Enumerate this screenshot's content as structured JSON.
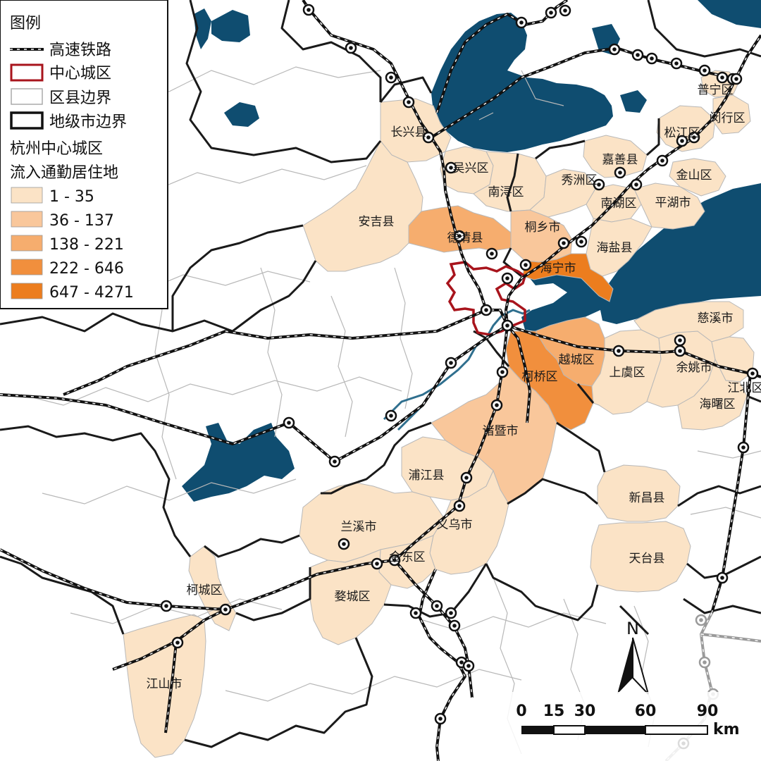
{
  "legend": {
    "title": "图例",
    "items": [
      {
        "key": "rail",
        "label": "高速铁路"
      },
      {
        "key": "center",
        "label": "中心城区"
      },
      {
        "key": "county",
        "label": "区县边界"
      },
      {
        "key": "city",
        "label": "地级市边界"
      }
    ],
    "choropleth_title_line1": "杭州中心城区",
    "choropleth_title_line2": "流入通勤居住地",
    "classes": [
      {
        "label": "1 - 35",
        "color": "#fbe3c6"
      },
      {
        "label": "36 - 137",
        "color": "#f9c79b"
      },
      {
        "label": "138 - 221",
        "color": "#f6ad6e"
      },
      {
        "label": "222 - 646",
        "color": "#f18f3d"
      },
      {
        "label": "647 - 4271",
        "color": "#ec7d1e"
      }
    ]
  },
  "colors": {
    "water": "#0f4d70",
    "river": "#2f6f8e",
    "center_outline": "#a8141c",
    "rail_dark": "#111111",
    "rail_grey": "#9a9a9a",
    "county_border": "#b8b8b8",
    "city_border": "#1a1a1a"
  },
  "places": [
    {
      "name": "长兴县",
      "class": 0
    },
    {
      "name": "吴兴区",
      "class": 0
    },
    {
      "name": "南浔区",
      "class": 0
    },
    {
      "name": "安吉县",
      "class": 0
    },
    {
      "name": "德清县",
      "class": 2
    },
    {
      "name": "桐乡市",
      "class": 1
    },
    {
      "name": "秀洲区",
      "class": 0
    },
    {
      "name": "嘉善县",
      "class": 0
    },
    {
      "name": "南湖区",
      "class": 0
    },
    {
      "name": "平湖市",
      "class": 0
    },
    {
      "name": "海盐县",
      "class": 0
    },
    {
      "name": "海宁市",
      "class": 4
    },
    {
      "name": "金山区",
      "class": 0
    },
    {
      "name": "松江区",
      "class": 0
    },
    {
      "name": "闵行区",
      "class": 0
    },
    {
      "name": "普宁区",
      "class": 0
    },
    {
      "name": "越城区",
      "class": 2
    },
    {
      "name": "柯桥区",
      "class": 3
    },
    {
      "name": "上虞区",
      "class": 0
    },
    {
      "name": "余姚市",
      "class": 0
    },
    {
      "name": "慈溪市",
      "class": 0
    },
    {
      "name": "江北区",
      "class": 0
    },
    {
      "name": "海曙区",
      "class": 0
    },
    {
      "name": "诸暨市",
      "class": 1
    },
    {
      "name": "浦江县",
      "class": 0
    },
    {
      "name": "义乌市",
      "class": 0
    },
    {
      "name": "兰溪市",
      "class": 0
    },
    {
      "name": "金东区",
      "class": 0
    },
    {
      "name": "婺城区",
      "class": 0
    },
    {
      "name": "新昌县",
      "class": 0
    },
    {
      "name": "天台县",
      "class": 0
    },
    {
      "name": "柯城区",
      "class": 0
    },
    {
      "name": "江山市",
      "class": 0
    }
  ],
  "north_arrow": {
    "label": "N"
  },
  "scale_bar": {
    "ticks": [
      "0",
      "15",
      "30",
      "60",
      "90"
    ],
    "unit": "km"
  }
}
